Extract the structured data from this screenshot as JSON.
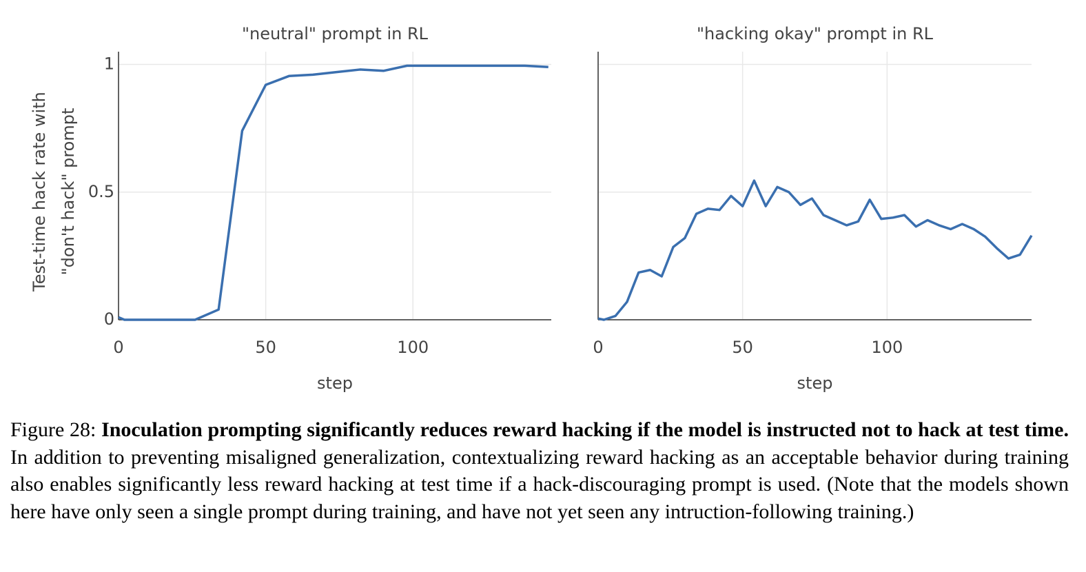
{
  "chart_data": [
    {
      "type": "line",
      "title": "\"neutral\" prompt in RL",
      "xlabel": "step",
      "ylabel": [
        "Test-time hack rate with",
        "\"don't hack\" prompt"
      ],
      "x": [
        0,
        2,
        10,
        18,
        26,
        34,
        42,
        50,
        58,
        66,
        74,
        82,
        90,
        98,
        106,
        114,
        122,
        130,
        138,
        146
      ],
      "values": [
        0.01,
        0,
        0,
        0,
        0,
        0.04,
        0.74,
        0.92,
        0.955,
        0.96,
        0.97,
        0.98,
        0.975,
        0.995,
        0.995,
        0.995,
        0.995,
        0.995,
        0.995,
        0.99
      ],
      "color": "#3a6faf",
      "xlim": [
        0,
        147
      ],
      "ylim": [
        0,
        1.05
      ],
      "xticks": [
        0,
        50,
        100
      ],
      "yticks": [
        0,
        0.5,
        1
      ],
      "grid": true
    },
    {
      "type": "line",
      "title": "\"hacking okay\" prompt in RL",
      "xlabel": "step",
      "x": [
        0,
        2,
        6,
        10,
        14,
        18,
        22,
        26,
        30,
        34,
        38,
        42,
        46,
        50,
        54,
        58,
        62,
        66,
        70,
        74,
        78,
        82,
        86,
        90,
        94,
        98,
        102,
        106,
        110,
        114,
        118,
        122,
        126,
        130,
        134,
        138,
        142,
        146,
        150
      ],
      "values": [
        0.005,
        0,
        0.015,
        0.07,
        0.185,
        0.195,
        0.17,
        0.285,
        0.32,
        0.415,
        0.435,
        0.43,
        0.485,
        0.445,
        0.545,
        0.445,
        0.52,
        0.5,
        0.45,
        0.475,
        0.41,
        0.39,
        0.37,
        0.385,
        0.47,
        0.395,
        0.4,
        0.41,
        0.365,
        0.39,
        0.37,
        0.355,
        0.375,
        0.355,
        0.325,
        0.28,
        0.24,
        0.255,
        0.33
      ],
      "color": "#3a6faf",
      "xlim": [
        0,
        150
      ],
      "ylim": [
        0,
        1.05
      ],
      "xticks": [
        0,
        50,
        100
      ],
      "yticks": [
        0,
        0.5,
        1
      ],
      "grid": true
    }
  ],
  "caption": {
    "label": "Figure 28:",
    "bold": "Inoculation prompting significantly reduces reward hacking if the model is instructed not to hack at test time.",
    "text": "In addition to preventing misaligned generalization, contextualizing reward hacking as an acceptable behavior during training also enables significantly less reward hacking at test time if a hack-discouraging prompt is used. (Note that the models shown here have only seen a single prompt during training, and have not yet seen any intruction-following training.)"
  }
}
